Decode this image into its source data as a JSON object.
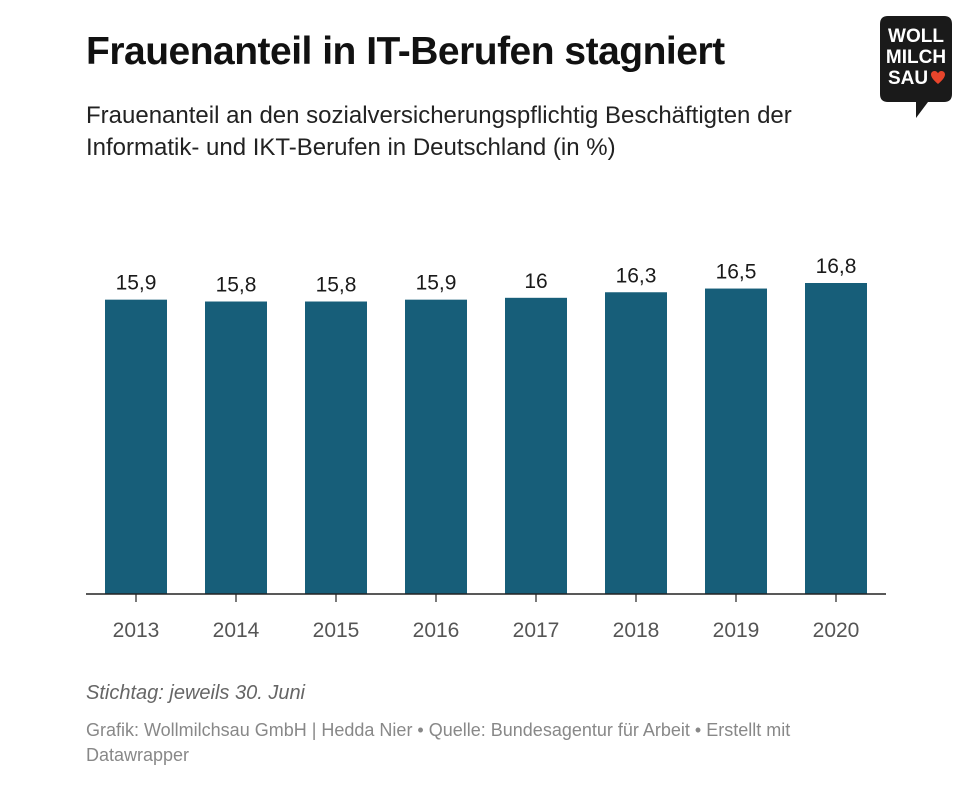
{
  "header": {
    "title": "Frauenanteil in IT-Berufen stagniert",
    "subtitle": "Frauenanteil an den sozialversicherungspflichtig Beschäftigten der Informatik- und IKT-Berufen in Deutschland (in %)"
  },
  "logo": {
    "lines": [
      "WOLL",
      "MILCH",
      "SAU"
    ],
    "icon": "heart-icon",
    "background": "#1a1a1a",
    "heart_color": "#e8452c"
  },
  "chart_data": {
    "type": "bar",
    "categories": [
      "2013",
      "2014",
      "2015",
      "2016",
      "2017",
      "2018",
      "2019",
      "2020"
    ],
    "values": [
      15.9,
      15.8,
      15.8,
      15.9,
      16,
      16.3,
      16.5,
      16.8
    ],
    "value_labels": [
      "15,9",
      "15,8",
      "15,8",
      "15,9",
      "16",
      "16,3",
      "16,5",
      "16,8"
    ],
    "title": "Frauenanteil in IT-Berufen stagniert",
    "xlabel": "",
    "ylabel": "",
    "ylim": [
      0,
      16.8
    ],
    "grid": false,
    "bar_color": "#175e79"
  },
  "footer": {
    "note": "Stichtag: jeweils 30. Juni",
    "credits": "Grafik: Wollmilchsau GmbH | Hedda Nier • Quelle: Bundesagentur für Arbeit • Erstellt mit Datawrapper"
  }
}
